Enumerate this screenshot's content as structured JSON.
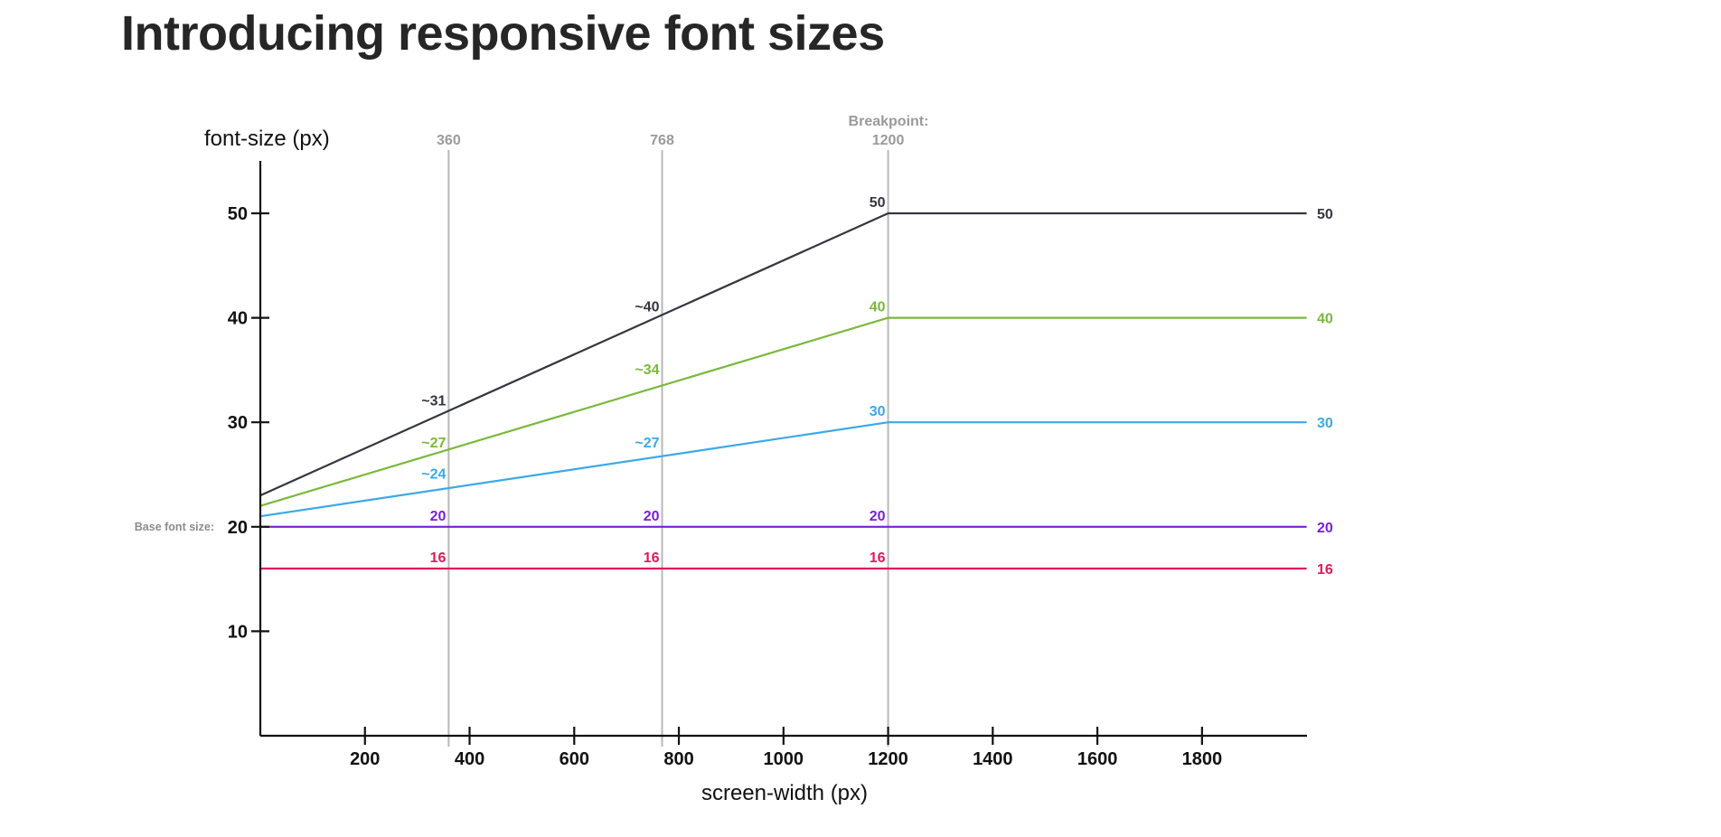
{
  "title": "Introducing responsive font sizes",
  "chart_data": {
    "type": "line",
    "xlabel": "screen-width (px)",
    "ylabel": "font-size (px)",
    "xlim": [
      0,
      2000
    ],
    "ylim": [
      0,
      55
    ],
    "x_ticks": [
      200,
      400,
      600,
      800,
      1000,
      1200,
      1400,
      1600,
      1800
    ],
    "y_ticks": [
      10,
      20,
      30,
      40,
      50
    ],
    "grid": false,
    "legend": "none",
    "breakpoint_title": "Breakpoint:",
    "vertical_markers": [
      {
        "x": 360,
        "label": "360"
      },
      {
        "x": 768,
        "label": "768"
      },
      {
        "x": 1200,
        "label": "1200"
      }
    ],
    "base_font_label": "Base font size:",
    "series": [
      {
        "color": "#333740",
        "points": [
          [
            0,
            23
          ],
          [
            1200,
            50
          ],
          [
            2000,
            50
          ]
        ],
        "annotations": [
          {
            "x": 360,
            "y": 31,
            "text": "~31"
          },
          {
            "x": 768,
            "y": 40,
            "text": "~40"
          },
          {
            "x": 1200,
            "y": 50,
            "text": "50"
          }
        ],
        "end_label": "50"
      },
      {
        "color": "#7ab83c",
        "points": [
          [
            0,
            22
          ],
          [
            1200,
            40
          ],
          [
            2000,
            40
          ]
        ],
        "annotations": [
          {
            "x": 360,
            "y": 27,
            "text": "~27"
          },
          {
            "x": 768,
            "y": 34,
            "text": "~34"
          },
          {
            "x": 1200,
            "y": 40,
            "text": "40"
          }
        ],
        "end_label": "40"
      },
      {
        "color": "#3aa9e8",
        "points": [
          [
            0,
            21
          ],
          [
            1200,
            30
          ],
          [
            2000,
            30
          ]
        ],
        "annotations": [
          {
            "x": 360,
            "y": 24,
            "text": "~24"
          },
          {
            "x": 768,
            "y": 27,
            "text": "~27"
          },
          {
            "x": 1200,
            "y": 30,
            "text": "30"
          }
        ],
        "end_label": "30"
      },
      {
        "color": "#7a1fd6",
        "points": [
          [
            0,
            20
          ],
          [
            2000,
            20
          ]
        ],
        "annotations": [
          {
            "x": 360,
            "y": 20,
            "text": "20"
          },
          {
            "x": 768,
            "y": 20,
            "text": "20"
          },
          {
            "x": 1200,
            "y": 20,
            "text": "20"
          }
        ],
        "end_label": "20"
      },
      {
        "color": "#e0195a",
        "points": [
          [
            0,
            16
          ],
          [
            2000,
            16
          ]
        ],
        "annotations": [
          {
            "x": 360,
            "y": 16,
            "text": "16"
          },
          {
            "x": 768,
            "y": 16,
            "text": "16"
          },
          {
            "x": 1200,
            "y": 16,
            "text": "16"
          }
        ],
        "end_label": "16"
      }
    ]
  }
}
